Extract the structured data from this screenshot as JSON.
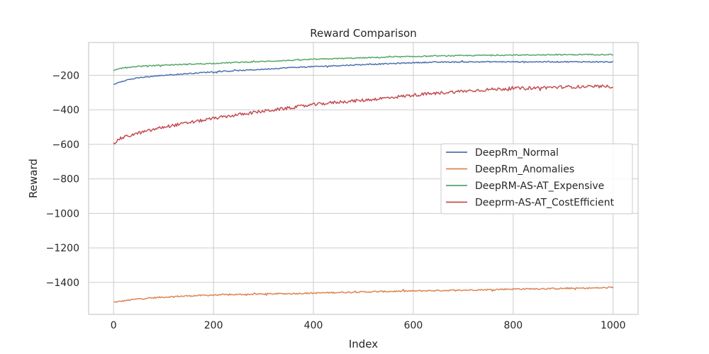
{
  "chart_data": {
    "type": "line",
    "title": "Reward Comparison",
    "xlabel": "Index",
    "ylabel": "Reward",
    "xlim": [
      -50,
      1050
    ],
    "ylim": [
      -1585,
      -10
    ],
    "xticks": [
      0,
      200,
      400,
      600,
      800,
      1000
    ],
    "xtick_labels": [
      "0",
      "200",
      "400",
      "600",
      "800",
      "1000"
    ],
    "yticks": [
      -200,
      -400,
      -600,
      -800,
      -1000,
      -1200,
      -1400
    ],
    "ytick_labels": [
      "−200",
      "−400",
      "−600",
      "−800",
      "−1000",
      "−1200",
      "−1400"
    ],
    "grid": true,
    "legend_position": "center-right",
    "series": [
      {
        "name": "DeepRm_Normal",
        "color": "#4c72b0",
        "x": [
          0,
          10,
          25,
          50,
          75,
          100,
          150,
          200,
          250,
          300,
          350,
          400,
          450,
          500,
          550,
          600,
          650,
          700,
          750,
          800,
          850,
          900,
          950,
          1000
        ],
        "y": [
          -255,
          -240,
          -228,
          -215,
          -207,
          -200,
          -190,
          -180,
          -173,
          -165,
          -156,
          -150,
          -144,
          -138,
          -133,
          -127,
          -124,
          -123,
          -122,
          -122,
          -122,
          -122,
          -122,
          -123
        ],
        "noise": 3
      },
      {
        "name": "DeepRm_Anomalies",
        "color": "#dd8452",
        "x": [
          0,
          25,
          50,
          100,
          150,
          200,
          250,
          300,
          350,
          400,
          450,
          500,
          550,
          600,
          650,
          700,
          750,
          800,
          850,
          900,
          950,
          1000
        ],
        "y": [
          -1515,
          -1505,
          -1495,
          -1485,
          -1478,
          -1473,
          -1470,
          -1467,
          -1465,
          -1462,
          -1458,
          -1455,
          -1452,
          -1450,
          -1447,
          -1445,
          -1442,
          -1438,
          -1437,
          -1435,
          -1433,
          -1430
        ],
        "noise": 4
      },
      {
        "name": "DeepRM-AS-AT_Expensive",
        "color": "#55a868",
        "x": [
          0,
          10,
          25,
          50,
          100,
          150,
          200,
          250,
          300,
          350,
          400,
          450,
          500,
          550,
          600,
          650,
          700,
          750,
          800,
          850,
          900,
          950,
          1000
        ],
        "y": [
          -175,
          -162,
          -155,
          -148,
          -141,
          -136,
          -131,
          -125,
          -120,
          -114,
          -108,
          -103,
          -99,
          -95,
          -91,
          -88,
          -86,
          -84,
          -83,
          -82,
          -81,
          -80,
          -80
        ],
        "noise": 3
      },
      {
        "name": "Deeprm-AS-AT_CostEfficient",
        "color": "#c44e52",
        "x": [
          0,
          10,
          25,
          50,
          75,
          100,
          150,
          200,
          250,
          300,
          350,
          400,
          450,
          500,
          550,
          600,
          650,
          700,
          750,
          800,
          850,
          900,
          950,
          1000
        ],
        "y": [
          -600,
          -570,
          -555,
          -535,
          -518,
          -500,
          -475,
          -450,
          -428,
          -408,
          -390,
          -370,
          -355,
          -345,
          -330,
          -315,
          -303,
          -292,
          -283,
          -276,
          -272,
          -268,
          -266,
          -265
        ],
        "noise": 9
      }
    ]
  }
}
